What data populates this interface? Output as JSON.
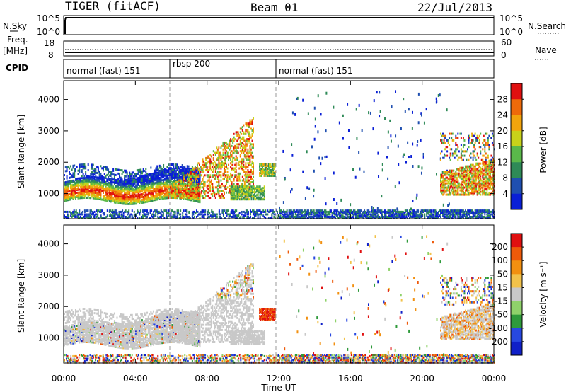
{
  "header": {
    "station": "TIGER (fitACF)",
    "beam": "Beam 01",
    "date": "22/Jul/2013"
  },
  "strips": {
    "nsky_label": "N.Sky",
    "nsky_ticks": [
      "10^5",
      "10^0"
    ],
    "nsearch_label": "N.Search",
    "nsearch_ticks": [
      "10^5",
      "10^0"
    ],
    "freq_label_1": "Freq.",
    "freq_label_2": "[MHz]",
    "freq_ticks": [
      "18",
      "8"
    ],
    "nave_label": "Nave",
    "nave_ticks": [
      "60",
      "0"
    ],
    "cpid_label": "CPID",
    "cpid_segments": [
      "normal (fast) 151",
      "rbsp 200",
      "normal (fast) 151"
    ]
  },
  "chart_data": [
    {
      "type": "heatmap",
      "name": "power",
      "ylabel": "Slant Range [km]",
      "yticks": [
        "1000",
        "2000",
        "3000",
        "4000"
      ],
      "ylim": [
        200,
        4600
      ],
      "xlim_hours": [
        0,
        24
      ],
      "colorbar_label": "Power [dB]",
      "colorbar_ticks": [
        "4",
        "8",
        "12",
        "16",
        "20",
        "24",
        "28"
      ],
      "colorbar_colors": [
        "#0a1fd6",
        "#1f4fb0",
        "#2e8a57",
        "#5ab84a",
        "#c8d21a",
        "#f2a40c",
        "#ee6a0a",
        "#e01010"
      ]
    },
    {
      "type": "heatmap",
      "name": "velocity",
      "ylabel": "Slant Range [km]",
      "yticks": [
        "1000",
        "2000",
        "3000",
        "4000"
      ],
      "ylim": [
        200,
        4600
      ],
      "xlim_hours": [
        0,
        24
      ],
      "colorbar_label": "Velocity [m s⁻¹]",
      "colorbar_ticks": [
        "200",
        "100",
        "50",
        "15",
        "-15",
        "-50",
        "-100",
        "-200"
      ],
      "colorbar_colors": [
        "#1020c8",
        "#2848e0",
        "#2e9a3a",
        "#8fd26a",
        "#c8c8c8",
        "#f2c24a",
        "#f29010",
        "#ee5a0a",
        "#e01010"
      ]
    }
  ],
  "xaxis": {
    "ticks": [
      "00:00",
      "04:00",
      "08:00",
      "12:00",
      "16:00",
      "20:00",
      "00:00"
    ],
    "label": "Time UT"
  }
}
